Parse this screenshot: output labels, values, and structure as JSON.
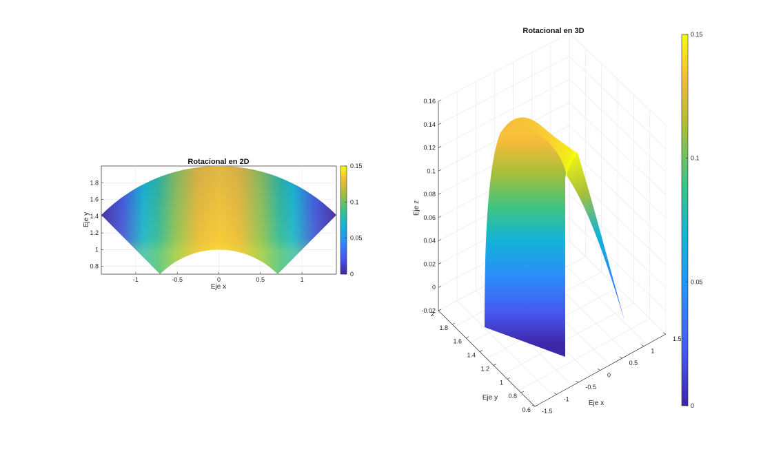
{
  "figure": {
    "background": "#ffffff"
  },
  "chart_data": [
    {
      "type": "heatmap",
      "title": "Rotacional en 2D",
      "xlabel": "Eje x",
      "ylabel": "Eje y",
      "xlim": [
        -1.414,
        1.414
      ],
      "ylim": [
        0.707,
        2.0
      ],
      "xticks": [
        -1,
        -0.5,
        0,
        0.5,
        1
      ],
      "xtick_labels": [
        "-1",
        "-0.5",
        "0",
        "0.5",
        "1"
      ],
      "yticks": [
        0.8,
        1,
        1.2,
        1.4,
        1.6,
        1.8
      ],
      "ytick_labels": [
        "0.8",
        "1",
        "1.2",
        "1.4",
        "1.6",
        "1.8"
      ],
      "domain": {
        "shape": "annular sector",
        "r": [
          1,
          2
        ],
        "theta_deg": [
          45,
          135
        ]
      },
      "colorbar": {
        "limits": [
          0,
          0.15
        ],
        "ticks": [
          0,
          0.05,
          0.1,
          0.15
        ],
        "tick_labels": [
          "0",
          "0.05",
          "0.1",
          "0.15"
        ],
        "colormap": "parula"
      },
      "grid": true
    },
    {
      "type": "surface",
      "title": "Rotacional en 3D",
      "xlabel": "Eje x",
      "ylabel": "Eje y",
      "zlabel": "Eje z",
      "xlim": [
        -1.5,
        1.5
      ],
      "ylim": [
        0.6,
        2.0
      ],
      "zlim": [
        -0.02,
        0.16
      ],
      "xticks": [
        -1.5,
        -1,
        -0.5,
        0,
        0.5,
        1,
        1.5
      ],
      "xtick_labels": [
        "-1.5",
        "-1",
        "-0.5",
        "0",
        "0.5",
        "1",
        "1.5"
      ],
      "yticks": [
        0.6,
        0.8,
        1,
        1.2,
        1.4,
        1.6,
        1.8,
        2
      ],
      "ytick_labels": [
        "0.6",
        "0.8",
        "1",
        "1.2",
        "1.4",
        "1.6",
        "1.8",
        "2"
      ],
      "zticks": [
        -0.02,
        0,
        0.02,
        0.04,
        0.06,
        0.08,
        0.1,
        0.12,
        0.14,
        0.16
      ],
      "ztick_labels": [
        "-0.02",
        "0",
        "0.02",
        "0.04",
        "0.06",
        "0.08",
        "0.1",
        "0.12",
        "0.14",
        "0.16"
      ],
      "colorbar": {
        "limits": [
          0,
          0.15
        ],
        "ticks": [
          0,
          0.05,
          0.1,
          0.15
        ],
        "tick_labels": [
          "0",
          "0.05",
          "0.1",
          "0.15"
        ],
        "colormap": "parula"
      },
      "grid": true
    }
  ]
}
